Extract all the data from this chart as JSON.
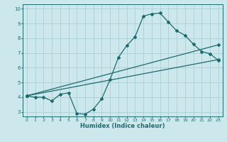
{
  "xlabel": "Humidex (Indice chaleur)",
  "bg_color": "#cce8ec",
  "grid_color": "#aad0d5",
  "line_color": "#1c6b6e",
  "xlim": [
    -0.5,
    23.5
  ],
  "ylim": [
    2.7,
    10.3
  ],
  "yticks": [
    3,
    4,
    5,
    6,
    7,
    8,
    9,
    10
  ],
  "xticks": [
    0,
    1,
    2,
    3,
    4,
    5,
    6,
    7,
    8,
    9,
    10,
    11,
    12,
    13,
    14,
    15,
    16,
    17,
    18,
    19,
    20,
    21,
    22,
    23
  ],
  "line1_x": [
    0,
    1,
    2,
    3,
    4,
    5,
    6,
    7,
    8,
    9,
    10,
    11,
    12,
    13,
    14,
    15,
    16,
    17,
    18,
    19,
    20,
    21,
    22,
    23
  ],
  "line1_y": [
    4.1,
    4.0,
    4.0,
    3.75,
    4.2,
    4.3,
    2.9,
    2.85,
    3.2,
    3.9,
    5.2,
    6.7,
    7.5,
    8.1,
    9.5,
    9.65,
    9.7,
    9.1,
    8.5,
    8.2,
    7.6,
    7.1,
    6.95,
    6.5
  ],
  "line2_x": [
    0,
    23
  ],
  "line2_y": [
    4.1,
    6.55
  ],
  "line3_x": [
    0,
    23
  ],
  "line3_y": [
    4.1,
    7.55
  ]
}
